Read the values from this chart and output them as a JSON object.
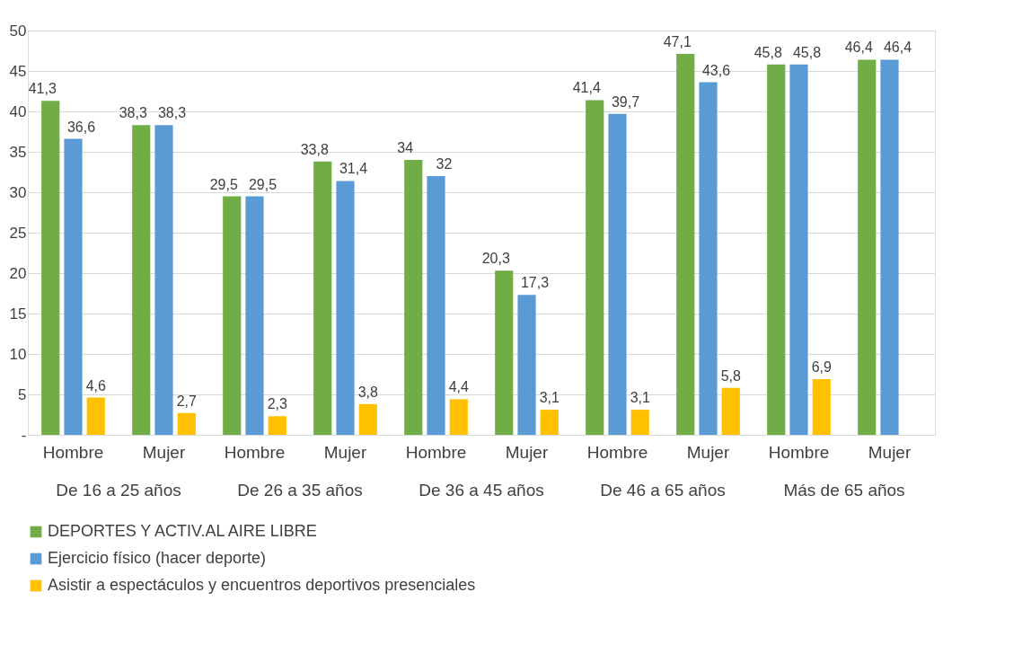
{
  "chart_data": {
    "type": "bar",
    "categories": [
      "Hombre",
      "Mujer",
      "Hombre",
      "Mujer",
      "Hombre",
      "Mujer",
      "Hombre",
      "Mujer",
      "Hombre",
      "Mujer"
    ],
    "annotations": [
      "De 16 a 25 años",
      "De 26 a 35 años",
      "De 36 a 45 años",
      "De 46 a 65 años",
      "Más de 65 años"
    ],
    "series": [
      {
        "name": "DEPORTES Y ACTIV.AL AIRE LIBRE",
        "color": "#70ad47",
        "values": [
          41.3,
          38.3,
          29.5,
          33.8,
          34,
          20.3,
          41.4,
          47.1,
          45.8,
          46.4
        ],
        "value_labels": [
          "41,3",
          "38,3",
          "29,5",
          "33,8",
          "34",
          "20,3",
          "41,4",
          "47,1",
          "45,8",
          "46,4"
        ]
      },
      {
        "name": "Ejercicio físico (hacer deporte)",
        "color": "#5b9bd5",
        "values": [
          36.6,
          38.3,
          29.5,
          31.4,
          32,
          17.3,
          39.7,
          43.6,
          45.8,
          46.4
        ],
        "value_labels": [
          "36,6",
          "38,3",
          "29,5",
          "31,4",
          "32",
          "17,3",
          "39,7",
          "43,6",
          "45,8",
          "46,4"
        ]
      },
      {
        "name": " Asistir a espectáculos y encuentros deportivos presenciales",
        "color": "#ffc000",
        "values": [
          4.6,
          2.7,
          2.3,
          3.8,
          4.4,
          3.1,
          3.1,
          5.8,
          6.9,
          null
        ],
        "value_labels": [
          "4,6",
          "2,7",
          "2,3",
          "3,8",
          "4,4",
          "3,1",
          "3,1",
          "5,8",
          "6,9",
          null
        ]
      }
    ],
    "ylim": [
      0,
      50
    ],
    "yticks": [
      {
        "value": 0,
        "label": "-"
      },
      5,
      10,
      15,
      20,
      25,
      30,
      35,
      40,
      45,
      50
    ],
    "grid": "y",
    "legend": "bottom"
  }
}
